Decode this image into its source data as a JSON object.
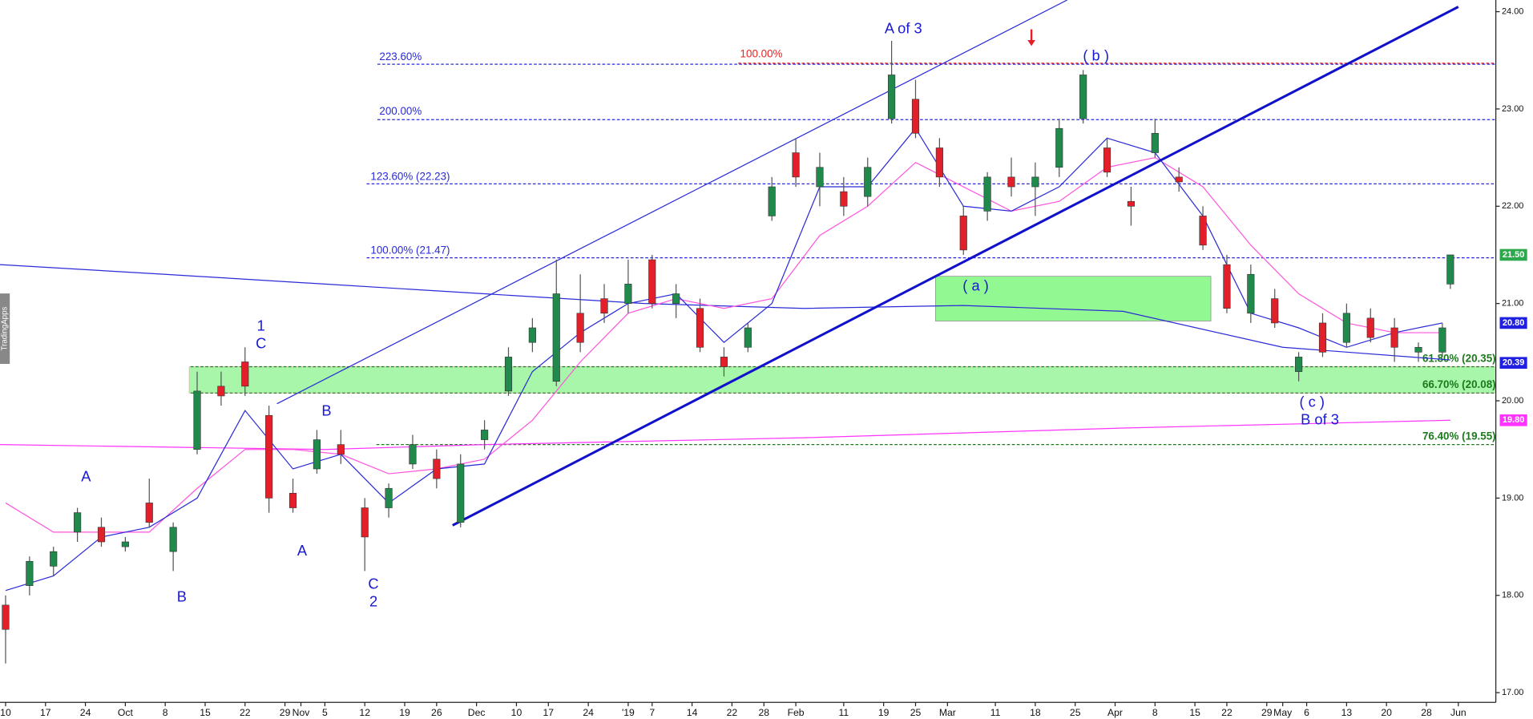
{
  "chart_data": {
    "type": "candlestick",
    "branding": "TradingApps",
    "xlim": [
      -0.7,
      186.7
    ],
    "ylim": [
      16.9,
      24.12
    ],
    "xticks": [
      {
        "value": 0,
        "label": "10"
      },
      {
        "value": 5,
        "label": "17"
      },
      {
        "value": 10,
        "label": "24"
      },
      {
        "value": 15,
        "label": "Oct"
      },
      {
        "value": 20,
        "label": "8"
      },
      {
        "value": 25,
        "label": "15"
      },
      {
        "value": 30,
        "label": "22"
      },
      {
        "value": 35,
        "label": "29"
      },
      {
        "value": 37,
        "label": "Nov"
      },
      {
        "value": 40,
        "label": "5"
      },
      {
        "value": 45,
        "label": "12"
      },
      {
        "value": 50,
        "label": "19"
      },
      {
        "value": 54,
        "label": "26"
      },
      {
        "value": 59,
        "label": "Dec"
      },
      {
        "value": 64,
        "label": "10"
      },
      {
        "value": 68,
        "label": "17"
      },
      {
        "value": 73,
        "label": "24"
      },
      {
        "value": 78,
        "label": "'19"
      },
      {
        "value": 81,
        "label": "7"
      },
      {
        "value": 86,
        "label": "14"
      },
      {
        "value": 91,
        "label": "22"
      },
      {
        "value": 95,
        "label": "28"
      },
      {
        "value": 99,
        "label": "Feb"
      },
      {
        "value": 105,
        "label": "11"
      },
      {
        "value": 110,
        "label": "19"
      },
      {
        "value": 114,
        "label": "25"
      },
      {
        "value": 118,
        "label": "Mar"
      },
      {
        "value": 124,
        "label": "11"
      },
      {
        "value": 129,
        "label": "18"
      },
      {
        "value": 134,
        "label": "25"
      },
      {
        "value": 139,
        "label": "Apr"
      },
      {
        "value": 144,
        "label": "8"
      },
      {
        "value": 149,
        "label": "15"
      },
      {
        "value": 153,
        "label": "22"
      },
      {
        "value": 158,
        "label": "29"
      },
      {
        "value": 160,
        "label": "May"
      },
      {
        "value": 163,
        "label": "6"
      },
      {
        "value": 168,
        "label": "13"
      },
      {
        "value": 173,
        "label": "20"
      },
      {
        "value": 178,
        "label": "28"
      },
      {
        "value": 182,
        "label": "Jun"
      }
    ],
    "yticks": [
      {
        "value": 17,
        "label": "17.00"
      },
      {
        "value": 18,
        "label": "18.00"
      },
      {
        "value": 19,
        "label": "19.00"
      },
      {
        "value": 20,
        "label": "20.00"
      },
      {
        "value": 21,
        "label": "21.00"
      },
      {
        "value": 22,
        "label": "22.00"
      },
      {
        "value": 23,
        "label": "23.00"
      },
      {
        "value": 24,
        "label": "24.00"
      }
    ],
    "up_color": "#1f8a4c",
    "down_color": "#e3202a",
    "candles": {
      "x": [
        0,
        3,
        6,
        9,
        12,
        15,
        18,
        21,
        24,
        27,
        30,
        33,
        36,
        39,
        42,
        45,
        48,
        51,
        54,
        57,
        60,
        63,
        66,
        69,
        72,
        75,
        78,
        81,
        84,
        87,
        90,
        93,
        96,
        99,
        102,
        105,
        108,
        111,
        114,
        117,
        120,
        123,
        126,
        129,
        132,
        135,
        138,
        141,
        144,
        147,
        150,
        153,
        156,
        159,
        162,
        165,
        168,
        171,
        174,
        177,
        180,
        181
      ],
      "open": [
        17.9,
        18.1,
        18.3,
        18.65,
        18.7,
        18.5,
        18.95,
        18.45,
        19.5,
        20.15,
        20.4,
        19.85,
        19.05,
        19.3,
        19.55,
        18.9,
        18.9,
        19.35,
        19.4,
        18.75,
        19.6,
        20.1,
        20.6,
        20.2,
        20.9,
        21.05,
        21.0,
        21.45,
        21.0,
        20.95,
        20.45,
        20.55,
        21.9,
        22.55,
        22.2,
        22.15,
        22.1,
        22.9,
        23.1,
        22.6,
        21.9,
        21.95,
        22.3,
        22.2,
        22.4,
        22.9,
        22.6,
        22.05,
        22.55,
        22.3,
        21.9,
        21.4,
        20.9,
        21.05,
        20.3,
        20.8,
        20.6,
        20.85,
        20.75,
        20.5,
        20.5,
        21.2
      ],
      "high": [
        18.0,
        18.4,
        18.5,
        18.9,
        18.8,
        18.6,
        19.2,
        18.75,
        20.3,
        20.3,
        20.55,
        19.95,
        19.2,
        19.7,
        19.7,
        19.0,
        19.15,
        19.65,
        19.5,
        19.45,
        19.8,
        20.55,
        20.85,
        21.45,
        21.3,
        21.2,
        21.45,
        21.5,
        21.2,
        21.05,
        20.55,
        20.8,
        22.3,
        22.7,
        22.55,
        22.3,
        22.5,
        23.7,
        23.3,
        22.7,
        22.0,
        22.35,
        22.5,
        22.45,
        22.9,
        23.4,
        22.7,
        22.2,
        22.9,
        22.4,
        22.0,
        21.5,
        21.4,
        21.15,
        20.5,
        20.9,
        21.0,
        20.95,
        20.85,
        20.6,
        20.8,
        21.5
      ],
      "low": [
        17.3,
        18.0,
        18.2,
        18.55,
        18.5,
        18.45,
        18.7,
        18.25,
        19.45,
        19.95,
        20.05,
        18.85,
        18.85,
        19.25,
        19.35,
        18.25,
        18.8,
        19.3,
        19.1,
        18.7,
        19.5,
        20.05,
        20.5,
        20.15,
        20.5,
        20.8,
        20.9,
        20.95,
        20.85,
        20.5,
        20.25,
        20.5,
        21.85,
        22.2,
        22.0,
        21.9,
        22.0,
        22.85,
        22.7,
        22.2,
        21.5,
        21.85,
        22.1,
        21.9,
        22.3,
        22.85,
        22.3,
        21.8,
        22.5,
        22.15,
        21.55,
        20.9,
        20.8,
        20.75,
        20.2,
        20.45,
        20.55,
        20.6,
        20.4,
        20.4,
        20.45,
        21.15
      ],
      "close": [
        17.65,
        18.35,
        18.45,
        18.85,
        18.55,
        18.55,
        18.75,
        18.7,
        20.1,
        20.05,
        20.15,
        19.0,
        18.9,
        19.6,
        19.45,
        18.6,
        19.1,
        19.55,
        19.2,
        19.35,
        19.7,
        20.45,
        20.75,
        21.1,
        20.6,
        20.9,
        21.2,
        21.0,
        21.1,
        20.55,
        20.35,
        20.75,
        22.2,
        22.3,
        22.4,
        22.0,
        22.4,
        23.35,
        22.75,
        22.3,
        21.55,
        22.3,
        22.2,
        22.3,
        22.8,
        23.35,
        22.35,
        22.0,
        22.75,
        22.25,
        21.6,
        20.95,
        21.3,
        20.8,
        20.45,
        20.5,
        20.9,
        20.65,
        20.55,
        20.55,
        20.75,
        21.5
      ]
    },
    "lines": [
      {
        "color": "#2a2ad8",
        "width": 1,
        "x": [
          -0.7,
          20,
          40,
          60,
          80,
          100,
          120,
          140,
          160,
          181
        ],
        "values": [
          21.4,
          21.3,
          21.2,
          21.1,
          21.0,
          20.95,
          20.98,
          20.92,
          20.55,
          20.42
        ]
      },
      {
        "color": "#ff33ff",
        "width": 1,
        "x": [
          -0.7,
          40,
          60,
          100,
          140,
          181
        ],
        "values": [
          19.55,
          19.5,
          19.55,
          19.62,
          19.72,
          19.8
        ]
      },
      {
        "color": "#ff55dd",
        "width": 1,
        "x": [
          0,
          6,
          12,
          18,
          24,
          30,
          36,
          42,
          48,
          54,
          60,
          66,
          72,
          78,
          84,
          90,
          96,
          102,
          108,
          114,
          120,
          126,
          132,
          138,
          144,
          150,
          156,
          162,
          168,
          174,
          180
        ],
        "values": [
          18.95,
          18.65,
          18.65,
          18.65,
          19.1,
          19.5,
          19.5,
          19.45,
          19.25,
          19.3,
          19.4,
          19.8,
          20.4,
          20.9,
          21.05,
          20.95,
          21.05,
          21.7,
          22.0,
          22.45,
          22.2,
          21.95,
          22.05,
          22.4,
          22.5,
          22.2,
          21.6,
          21.1,
          20.8,
          20.7,
          20.7
        ]
      },
      {
        "color": "#2a2ad8",
        "width": 1,
        "x": [
          0,
          6,
          12,
          18,
          24,
          30,
          36,
          42,
          48,
          54,
          60,
          66,
          72,
          78,
          84,
          90,
          96,
          102,
          108,
          114,
          120,
          126,
          132,
          138,
          144,
          150,
          156,
          162,
          168,
          174,
          180
        ],
        "values": [
          18.05,
          18.2,
          18.6,
          18.7,
          19.0,
          19.9,
          19.3,
          19.45,
          18.95,
          19.3,
          19.35,
          20.3,
          20.7,
          21.0,
          21.1,
          20.6,
          21.0,
          22.2,
          22.2,
          22.8,
          22.0,
          21.95,
          22.2,
          22.7,
          22.55,
          21.9,
          20.9,
          20.75,
          20.55,
          20.7,
          20.8
        ]
      },
      {
        "color": "#1111cc",
        "width": 2.5,
        "x": [
          56,
          182
        ],
        "values": [
          18.72,
          24.05
        ]
      },
      {
        "color": "#2a2ad8",
        "width": 1,
        "x": [
          34,
          133
        ],
        "values": [
          19.97,
          24.12
        ]
      }
    ],
    "zones": [
      {
        "color": "#99f59c",
        "x": [
          23,
          186.7
        ],
        "y": [
          20.08,
          20.35
        ]
      },
      {
        "color": "#80f880",
        "x": [
          116.5,
          151
        ],
        "y": [
          20.82,
          21.28
        ]
      }
    ],
    "levels": [
      {
        "value": 23.46,
        "label": "223.60%",
        "color": "#2a2ad8"
      },
      {
        "value": 23.47,
        "label": "100.00%",
        "color": "#ee2222"
      },
      {
        "value": 22.89,
        "label": "200.00%",
        "color": "#2a2ad8"
      },
      {
        "value": 22.23,
        "label": "123.60% (22.23)",
        "color": "#2a2ad8"
      },
      {
        "value": 21.47,
        "label": "100.00% (21.47)",
        "color": "#2a2ad8"
      },
      {
        "value": 20.35,
        "label": "61.80% (20.35)",
        "color": "#1d7a1d"
      },
      {
        "value": 20.08,
        "label": "66.70% (20.08)",
        "color": "#1d7a1d"
      },
      {
        "value": 19.55,
        "label": "76.40% (19.55)",
        "color": "#1d7a1d"
      }
    ],
    "price_tags": [
      {
        "value": 21.5,
        "label": "21.50",
        "color": "#2ea84c"
      },
      {
        "value": 20.8,
        "label": "20.80",
        "color": "#2020e0"
      },
      {
        "value": 20.39,
        "label": "20.39",
        "color": "#2020e0"
      },
      {
        "value": 19.8,
        "label": "19.80",
        "color": "#ff33ff"
      }
    ],
    "annotations": [
      "A of 3",
      "( b )",
      "1",
      "C",
      "A",
      "B",
      "A",
      "B",
      "C",
      "2",
      "( a )",
      "( c )",
      "B of 3"
    ]
  }
}
